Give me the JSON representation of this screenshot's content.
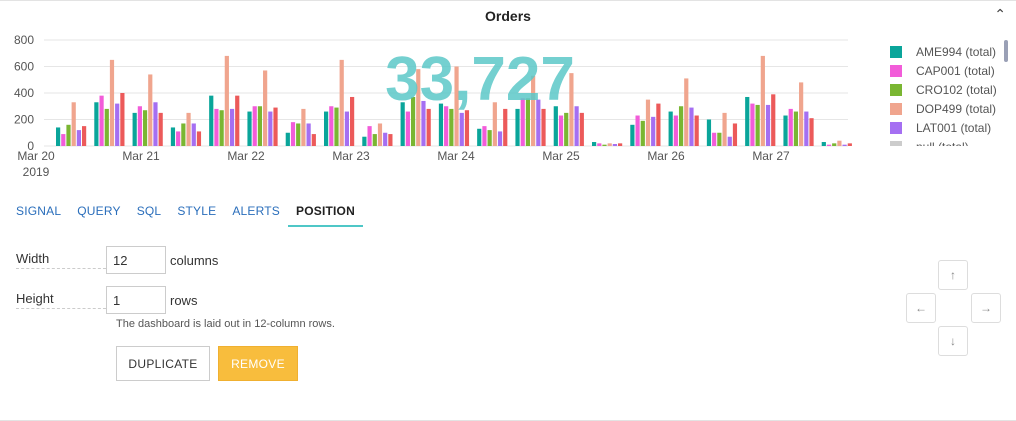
{
  "panel": {
    "title": "Orders",
    "collapse_icon": "chevron-up-icon",
    "big_number": "33,727",
    "big_number_color": "#5cc8c8"
  },
  "chart_data": {
    "type": "bar",
    "ylim": [
      0,
      800
    ],
    "yticks": [
      "0",
      "200",
      "400",
      "600",
      "800"
    ],
    "xticks": [
      "Mar 20",
      "Mar 21",
      "Mar 22",
      "Mar 23",
      "Mar 24",
      "Mar 25",
      "Mar 26",
      "Mar 27"
    ],
    "xtick_sub": "2019",
    "series": [
      {
        "name": "AME994 (total)",
        "color": "#0aa59a",
        "values": [
          140,
          330,
          250,
          140,
          380,
          260,
          100,
          260,
          70,
          330,
          320,
          130,
          280,
          300,
          30,
          160,
          260,
          200,
          370,
          230,
          30
        ]
      },
      {
        "name": "CAP001 (total)",
        "color": "#f25cd9",
        "values": [
          90,
          380,
          300,
          110,
          280,
          300,
          180,
          300,
          150,
          260,
          300,
          150,
          360,
          230,
          20,
          230,
          230,
          100,
          320,
          280,
          10
        ]
      },
      {
        "name": "CRO102 (total)",
        "color": "#7ab632",
        "values": [
          160,
          280,
          270,
          170,
          270,
          300,
          170,
          290,
          90,
          370,
          280,
          120,
          360,
          250,
          10,
          190,
          300,
          100,
          310,
          260,
          20
        ]
      },
      {
        "name": "DOP499 (total)",
        "color": "#f0a58e",
        "values": [
          330,
          650,
          540,
          250,
          680,
          570,
          280,
          650,
          170,
          580,
          600,
          330,
          530,
          550,
          20,
          350,
          510,
          250,
          680,
          480,
          40
        ]
      },
      {
        "name": "LAT001 (total)",
        "color": "#a56ff2",
        "values": [
          120,
          320,
          330,
          170,
          280,
          260,
          170,
          260,
          100,
          340,
          250,
          110,
          350,
          300,
          15,
          220,
          290,
          70,
          310,
          260,
          10
        ]
      },
      {
        "name": "null (total)",
        "color": "#cccccc",
        "values": []
      },
      {
        "name": "",
        "color": "#ec5a5a",
        "values": [
          150,
          400,
          250,
          110,
          380,
          290,
          90,
          370,
          90,
          280,
          270,
          280,
          280,
          250,
          20,
          320,
          230,
          170,
          390,
          210,
          20
        ]
      }
    ]
  },
  "tabs": [
    {
      "label": "SIGNAL",
      "active": false
    },
    {
      "label": "QUERY",
      "active": false
    },
    {
      "label": "SQL",
      "active": false
    },
    {
      "label": "STYLE",
      "active": false
    },
    {
      "label": "ALERTS",
      "active": false
    },
    {
      "label": "POSITION",
      "active": true
    }
  ],
  "position": {
    "width_label": "Width",
    "width_value": "12",
    "width_unit": "columns",
    "height_label": "Height",
    "height_value": "1",
    "height_unit": "rows",
    "hint": "The dashboard is laid out in 12-column rows.",
    "duplicate_label": "DUPLICATE",
    "remove_label": "REMOVE"
  },
  "arrows": {
    "up": "↑",
    "left": "←",
    "right": "→",
    "down": "↓"
  }
}
